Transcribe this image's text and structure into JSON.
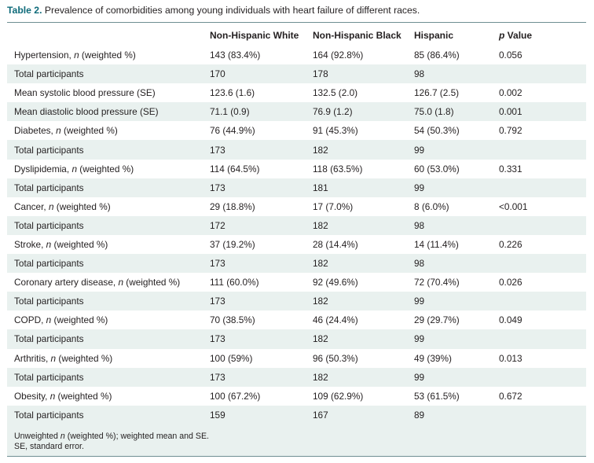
{
  "caption": {
    "label": "Table 2.",
    "text": "Prevalence of comorbidities among young individuals with heart failure of different races."
  },
  "header": {
    "col0": "",
    "col1": "Non-Hispanic White",
    "col2": "Non-Hispanic Black",
    "col3": "Hispanic",
    "col4_ital": "p",
    "col4_rest": " Value"
  },
  "rows": [
    {
      "pre": "Hypertension, ",
      "ital": "n",
      "post": " (weighted %)",
      "c1": "143 (83.4%)",
      "c2": "164 (92.8%)",
      "c3": "85 (86.4%)",
      "c4": "0.056"
    },
    {
      "pre": "Total participants",
      "ital": "",
      "post": "",
      "c1": "170",
      "c2": "178",
      "c3": "98",
      "c4": ""
    },
    {
      "pre": "Mean systolic blood pressure (SE)",
      "ital": "",
      "post": "",
      "c1": "123.6 (1.6)",
      "c2": "132.5 (2.0)",
      "c3": "126.7 (2.5)",
      "c4": "0.002"
    },
    {
      "pre": "Mean diastolic blood pressure (SE)",
      "ital": "",
      "post": "",
      "c1": "71.1 (0.9)",
      "c2": "76.9 (1.2)",
      "c3": "75.0 (1.8)",
      "c4": "0.001"
    },
    {
      "pre": "Diabetes, ",
      "ital": "n",
      "post": " (weighted %)",
      "c1": "76 (44.9%)",
      "c2": "91 (45.3%)",
      "c3": "54 (50.3%)",
      "c4": "0.792"
    },
    {
      "pre": "Total participants",
      "ital": "",
      "post": "",
      "c1": "173",
      "c2": "182",
      "c3": "99",
      "c4": ""
    },
    {
      "pre": "Dyslipidemia, ",
      "ital": "n",
      "post": " (weighted %)",
      "c1": "114 (64.5%)",
      "c2": "118 (63.5%)",
      "c3": "60 (53.0%)",
      "c4": "0.331"
    },
    {
      "pre": "Total participants",
      "ital": "",
      "post": "",
      "c1": "173",
      "c2": "181",
      "c3": "99",
      "c4": ""
    },
    {
      "pre": "Cancer, ",
      "ital": "n",
      "post": " (weighted %)",
      "c1": "29 (18.8%)",
      "c2": "17 (7.0%)",
      "c3": "8 (6.0%)",
      "c4": "<0.001"
    },
    {
      "pre": "Total participants",
      "ital": "",
      "post": "",
      "c1": "172",
      "c2": "182",
      "c3": "98",
      "c4": ""
    },
    {
      "pre": "Stroke, ",
      "ital": "n",
      "post": " (weighted %)",
      "c1": "37 (19.2%)",
      "c2": "28 (14.4%)",
      "c3": "14 (11.4%)",
      "c4": "0.226"
    },
    {
      "pre": "Total participants",
      "ital": "",
      "post": "",
      "c1": "173",
      "c2": "182",
      "c3": "98",
      "c4": ""
    },
    {
      "pre": "Coronary artery disease, ",
      "ital": "n",
      "post": " (weighted %)",
      "c1": "111 (60.0%)",
      "c2": "92 (49.6%)",
      "c3": "72 (70.4%)",
      "c4": "0.026"
    },
    {
      "pre": "Total participants",
      "ital": "",
      "post": "",
      "c1": "173",
      "c2": "182",
      "c3": "99",
      "c4": ""
    },
    {
      "pre": "COPD, ",
      "ital": "n",
      "post": " (weighted %)",
      "c1": "70 (38.5%)",
      "c2": "46 (24.4%)",
      "c3": "29 (29.7%)",
      "c4": "0.049"
    },
    {
      "pre": "Total participants",
      "ital": "",
      "post": "",
      "c1": "173",
      "c2": "182",
      "c3": "99",
      "c4": ""
    },
    {
      "pre": "Arthritis, ",
      "ital": "n",
      "post": " (weighted %)",
      "c1": "100 (59%)",
      "c2": "96 (50.3%)",
      "c3": "49 (39%)",
      "c4": "0.013"
    },
    {
      "pre": "Total participants",
      "ital": "",
      "post": "",
      "c1": "173",
      "c2": "182",
      "c3": "99",
      "c4": ""
    },
    {
      "pre": "Obesity, ",
      "ital": "n",
      "post": " (weighted %)",
      "c1": "100 (67.2%)",
      "c2": "109 (62.9%)",
      "c3": "53 (61.5%)",
      "c4": "0.672"
    },
    {
      "pre": "Total participants",
      "ital": "",
      "post": "",
      "c1": "159",
      "c2": "167",
      "c3": "89",
      "c4": ""
    }
  ],
  "footnote": {
    "line1_pre": "Unweighted ",
    "line1_ital": "n",
    "line1_post": " (weighted %); weighted mean and SE.",
    "line2": "SE, standard error."
  },
  "colors": {
    "accent": "#0f6b7a",
    "shade": "#e9f1ef",
    "text": "#231f20"
  }
}
